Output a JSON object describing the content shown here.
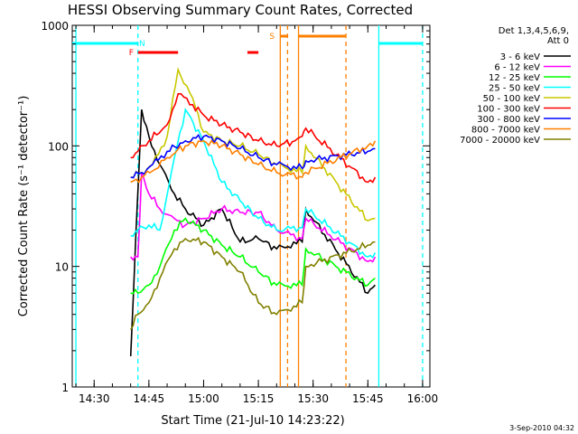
{
  "chart_data": {
    "type": "line",
    "title": "HESSI Observing Summary Count Rates, Corrected",
    "xlabel": "Start Time (21-Jul-10 14:23:22)",
    "ylabel": "Corrected Count Rate (s⁻¹ detector⁻¹)",
    "ylog": true,
    "ylim": [
      1,
      1000
    ],
    "xlim_minutes": [
      "14:24",
      "16:02"
    ],
    "x_ticks": [
      "14:30",
      "14:45",
      "15:00",
      "15:15",
      "15:30",
      "15:45",
      "16:00"
    ],
    "y_ticks": [
      "1",
      "10",
      "100",
      "1000"
    ],
    "legend_header": [
      "Det 1,3,4,5,6,9,",
      "Att 0"
    ],
    "footer": "3-Sep-2010 04:32",
    "flags": [
      {
        "label": "N",
        "color": "#00ffff",
        "spans": [
          [
            "14:24",
            "14:42"
          ],
          [
            "15:48",
            "16:00"
          ]
        ]
      },
      {
        "label": "F",
        "color": "#ff0000",
        "spans": [
          [
            "14:42",
            "14:53"
          ],
          [
            "15:12",
            "15:15"
          ]
        ]
      },
      {
        "label": "S",
        "color": "#ff8000",
        "spans": [
          [
            "15:21",
            "15:23"
          ],
          [
            "15:26",
            "15:39"
          ]
        ]
      }
    ],
    "vlines": [
      {
        "time": "14:42",
        "color": "#00ffff",
        "style": "dashed"
      },
      {
        "time": "15:48",
        "color": "#00ffff",
        "style": "solid"
      },
      {
        "time": "16:00",
        "color": "#00ffff",
        "style": "dashed"
      },
      {
        "time": "14:25",
        "color": "#00ffff",
        "style": "solid"
      },
      {
        "time": "15:21",
        "color": "#ff8000",
        "style": "solid"
      },
      {
        "time": "15:23",
        "color": "#ff8000",
        "style": "dashed"
      },
      {
        "time": "15:26",
        "color": "#ff8000",
        "style": "solid"
      },
      {
        "time": "15:39",
        "color": "#ff8000",
        "style": "dashed"
      }
    ],
    "series": [
      {
        "name": "3 - 6 keV",
        "color": "#000000",
        "times": [
          "14:40",
          "14:43",
          "14:45",
          "14:48",
          "14:52",
          "14:55",
          "15:00",
          "15:05",
          "15:10",
          "15:15",
          "15:20",
          "15:27",
          "15:28",
          "15:45",
          "15:47"
        ],
        "values": [
          1.8,
          200,
          120,
          70,
          40,
          30,
          22,
          30,
          16,
          17,
          14,
          16,
          30,
          6,
          7
        ]
      },
      {
        "name": "6 - 12 keV",
        "color": "#ff00ff",
        "times": [
          "14:40",
          "14:42",
          "14:43",
          "14:45",
          "14:48",
          "14:52",
          "14:55",
          "15:00",
          "15:05",
          "15:10",
          "15:15",
          "15:20",
          "15:27",
          "15:28",
          "15:45",
          "15:47"
        ],
        "values": [
          12,
          12,
          60,
          40,
          30,
          25,
          22,
          25,
          30,
          28,
          28,
          20,
          17,
          25,
          11,
          12
        ]
      },
      {
        "name": "12 - 25 keV",
        "color": "#00ff00",
        "times": [
          "14:40",
          "14:42",
          "14:45",
          "14:48",
          "14:52",
          "14:55",
          "15:00",
          "15:05",
          "15:10",
          "15:15",
          "15:20",
          "15:27",
          "15:28",
          "15:45",
          "15:47"
        ],
        "values": [
          6,
          6,
          7,
          10,
          20,
          25,
          20,
          15,
          12,
          9,
          7,
          7,
          14,
          7,
          8
        ]
      },
      {
        "name": "25 - 50 keV",
        "color": "#00ffff",
        "times": [
          "14:40",
          "14:42",
          "14:45",
          "14:48",
          "14:52",
          "14:55",
          "15:00",
          "15:05",
          "15:10",
          "15:15",
          "15:20",
          "15:27",
          "15:28",
          "15:45",
          "15:47"
        ],
        "values": [
          18,
          20,
          22,
          20,
          80,
          200,
          110,
          50,
          35,
          25,
          20,
          21,
          30,
          12,
          13
        ]
      },
      {
        "name": "50 - 100 keV",
        "color": "#c8c800",
        "times": [
          "14:40",
          "14:43",
          "14:46",
          "14:50",
          "14:53",
          "14:57",
          "15:00",
          "15:05",
          "15:10",
          "15:15",
          "15:20",
          "15:27",
          "15:28",
          "15:45",
          "15:47"
        ],
        "values": [
          55,
          60,
          70,
          120,
          430,
          250,
          130,
          110,
          100,
          85,
          70,
          60,
          100,
          24,
          25
        ]
      },
      {
        "name": "100 - 300 keV",
        "color": "#ff0000",
        "times": [
          "14:40",
          "14:42",
          "14:45",
          "14:50",
          "14:53",
          "14:57",
          "15:00",
          "15:05",
          "15:10",
          "15:15",
          "15:20",
          "15:25",
          "15:27",
          "15:28",
          "15:45",
          "15:47"
        ],
        "values": [
          80,
          90,
          110,
          150,
          270,
          220,
          180,
          150,
          130,
          110,
          100,
          110,
          120,
          140,
          50,
          55
        ]
      },
      {
        "name": "300 - 800 keV",
        "color": "#0000ff",
        "times": [
          "14:40",
          "14:43",
          "14:46",
          "14:50",
          "14:55",
          "15:00",
          "15:05",
          "15:10",
          "15:15",
          "15:20",
          "15:27",
          "15:28",
          "15:45",
          "15:47"
        ],
        "values": [
          55,
          60,
          70,
          90,
          110,
          120,
          110,
          95,
          80,
          70,
          65,
          75,
          90,
          95
        ]
      },
      {
        "name": "800 - 7000 keV",
        "color": "#ff8000",
        "times": [
          "14:40",
          "14:43",
          "14:46",
          "14:50",
          "14:55",
          "15:00",
          "15:05",
          "15:10",
          "15:15",
          "15:20",
          "15:27",
          "15:28",
          "15:45",
          "15:47"
        ],
        "values": [
          50,
          55,
          62,
          80,
          100,
          110,
          100,
          85,
          70,
          60,
          55,
          60,
          100,
          110
        ]
      },
      {
        "name": "7000 - 20000 keV",
        "color": "#808000",
        "times": [
          "14:40",
          "14:42",
          "14:45",
          "14:48",
          "14:52",
          "14:55",
          "15:00",
          "15:05",
          "15:10",
          "15:15",
          "15:20",
          "15:27",
          "15:28",
          "15:45",
          "15:47"
        ],
        "values": [
          3,
          4,
          5,
          8,
          14,
          17,
          16,
          12,
          9,
          5,
          4,
          5,
          10,
          15,
          16
        ]
      }
    ]
  }
}
